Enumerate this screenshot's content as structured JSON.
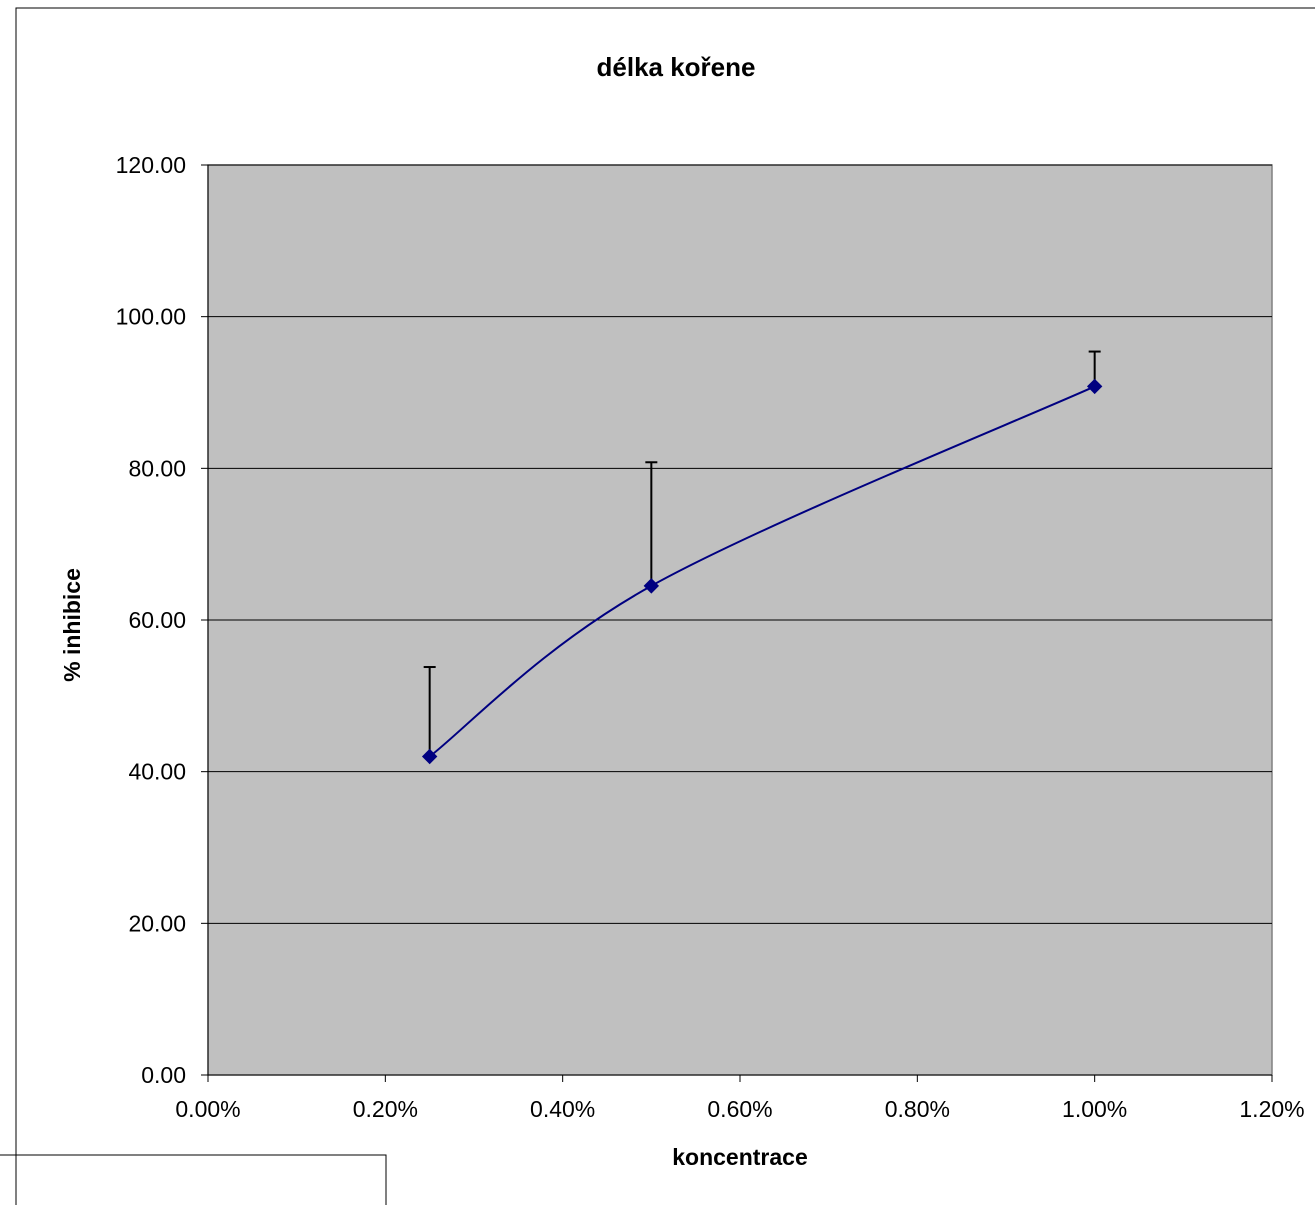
{
  "chart_data": {
    "type": "line",
    "title": "délka kořene",
    "xlabel": "koncentrace",
    "ylabel": "% inhibice",
    "x": [
      0.0025,
      0.005,
      0.01
    ],
    "series": [
      {
        "values": [
          42.0,
          64.5,
          90.8
        ],
        "error_plus": [
          11.8,
          16.3,
          4.6
        ],
        "color": "#000080"
      }
    ],
    "xlim": [
      0,
      0.012
    ],
    "ylim": [
      0,
      120
    ],
    "x_ticks": [
      0,
      0.002,
      0.004,
      0.006,
      0.008,
      0.01,
      0.012
    ],
    "x_tick_labels": [
      "0.00%",
      "0.20%",
      "0.40%",
      "0.60%",
      "0.80%",
      "1.00%",
      "1.20%"
    ],
    "y_ticks": [
      0,
      20,
      40,
      60,
      80,
      100,
      120
    ],
    "y_tick_labels": [
      "0.00",
      "20.00",
      "40.00",
      "60.00",
      "80.00",
      "100.00",
      "120.00"
    ],
    "grid": "horizontal",
    "plot_background": "#c0c0c0",
    "marker_color": "#000080",
    "error_bar_color": "#000000",
    "legend": "none",
    "smooth": true
  }
}
